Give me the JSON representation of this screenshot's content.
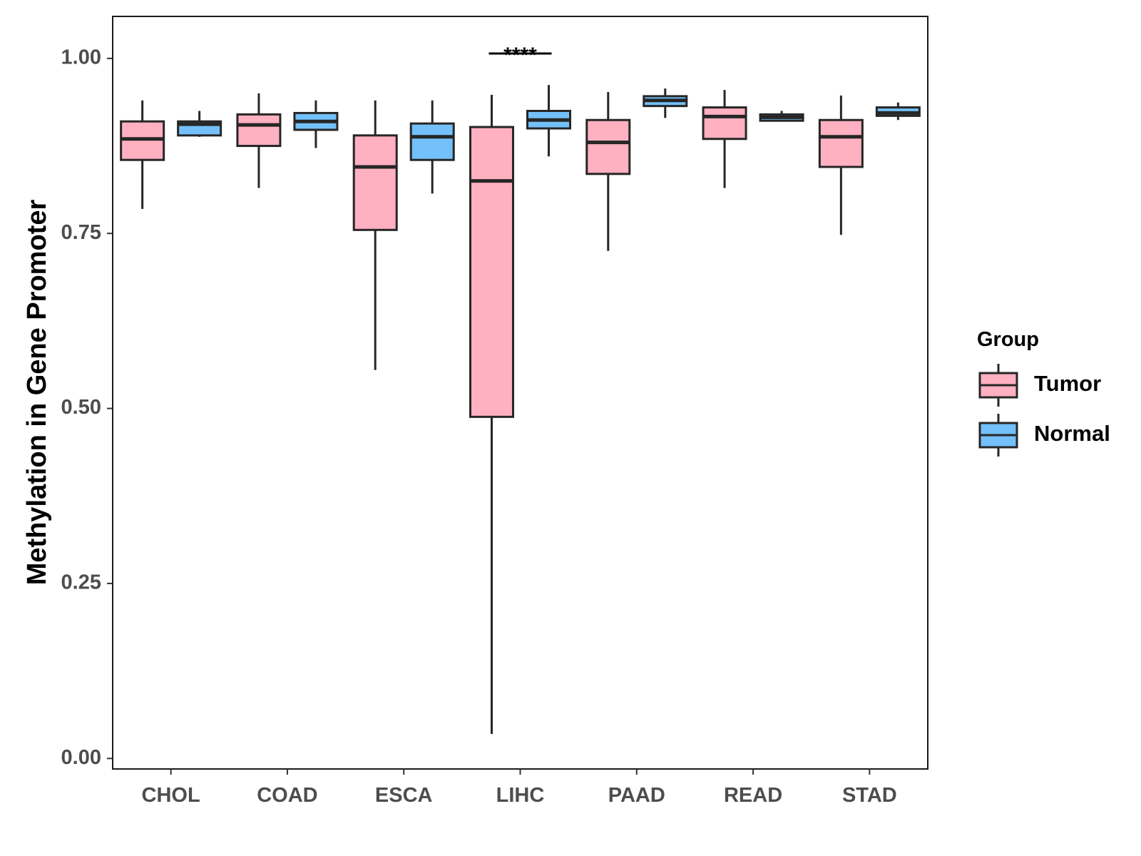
{
  "chart_data": {
    "type": "boxplot",
    "title": "",
    "xlabel": "",
    "ylabel": "Methylation in Gene Promoter",
    "ylim": [
      -0.015,
      1.06
    ],
    "yticks": [
      0.0,
      0.25,
      0.5,
      0.75,
      1.0
    ],
    "ytick_labels": [
      "0.00",
      "0.25",
      "0.50",
      "0.75",
      "1.00"
    ],
    "categories": [
      "CHOL",
      "COAD",
      "ESCA",
      "LIHC",
      "PAAD",
      "READ",
      "STAD"
    ],
    "legend": {
      "title": "Group",
      "position": "right",
      "entries": [
        {
          "name": "Tumor",
          "color": "#FFB0C1"
        },
        {
          "name": "Normal",
          "color": "#73C0FA"
        }
      ]
    },
    "series": [
      {
        "name": "Tumor",
        "color": "#FFB0C1",
        "boxes": [
          {
            "category": "CHOL",
            "min": 0.785,
            "q1": 0.855,
            "median": 0.885,
            "q3": 0.91,
            "max": 0.94
          },
          {
            "category": "COAD",
            "min": 0.815,
            "q1": 0.875,
            "median": 0.905,
            "q3": 0.92,
            "max": 0.95
          },
          {
            "category": "ESCA",
            "min": 0.555,
            "q1": 0.755,
            "median": 0.845,
            "q3": 0.89,
            "max": 0.94
          },
          {
            "category": "LIHC",
            "min": 0.035,
            "q1": 0.488,
            "median": 0.825,
            "q3": 0.902,
            "max": 0.948
          },
          {
            "category": "PAAD",
            "min": 0.725,
            "q1": 0.835,
            "median": 0.88,
            "q3": 0.912,
            "max": 0.952
          },
          {
            "category": "READ",
            "min": 0.815,
            "q1": 0.885,
            "median": 0.917,
            "q3": 0.93,
            "max": 0.955
          },
          {
            "category": "STAD",
            "min": 0.748,
            "q1": 0.845,
            "median": 0.888,
            "q3": 0.912,
            "max": 0.947
          }
        ]
      },
      {
        "name": "Normal",
        "color": "#73C0FA",
        "boxes": [
          {
            "category": "CHOL",
            "min": 0.888,
            "q1": 0.89,
            "median": 0.906,
            "q3": 0.91,
            "max": 0.925
          },
          {
            "category": "COAD",
            "min": 0.872,
            "q1": 0.898,
            "median": 0.91,
            "q3": 0.922,
            "max": 0.94
          },
          {
            "category": "ESCA",
            "min": 0.807,
            "q1": 0.855,
            "median": 0.888,
            "q3": 0.907,
            "max": 0.94
          },
          {
            "category": "LIHC",
            "min": 0.86,
            "q1": 0.9,
            "median": 0.912,
            "q3": 0.925,
            "max": 0.962
          },
          {
            "category": "PAAD",
            "min": 0.915,
            "q1": 0.932,
            "median": 0.94,
            "q3": 0.946,
            "max": 0.957
          },
          {
            "category": "READ",
            "min": 0.91,
            "q1": 0.911,
            "median": 0.916,
            "q3": 0.92,
            "max": 0.925
          },
          {
            "category": "STAD",
            "min": 0.912,
            "q1": 0.918,
            "median": 0.922,
            "q3": 0.93,
            "max": 0.937
          }
        ]
      }
    ],
    "annotations": [
      {
        "category": "LIHC",
        "label": "****",
        "y": 1.007
      }
    ]
  }
}
